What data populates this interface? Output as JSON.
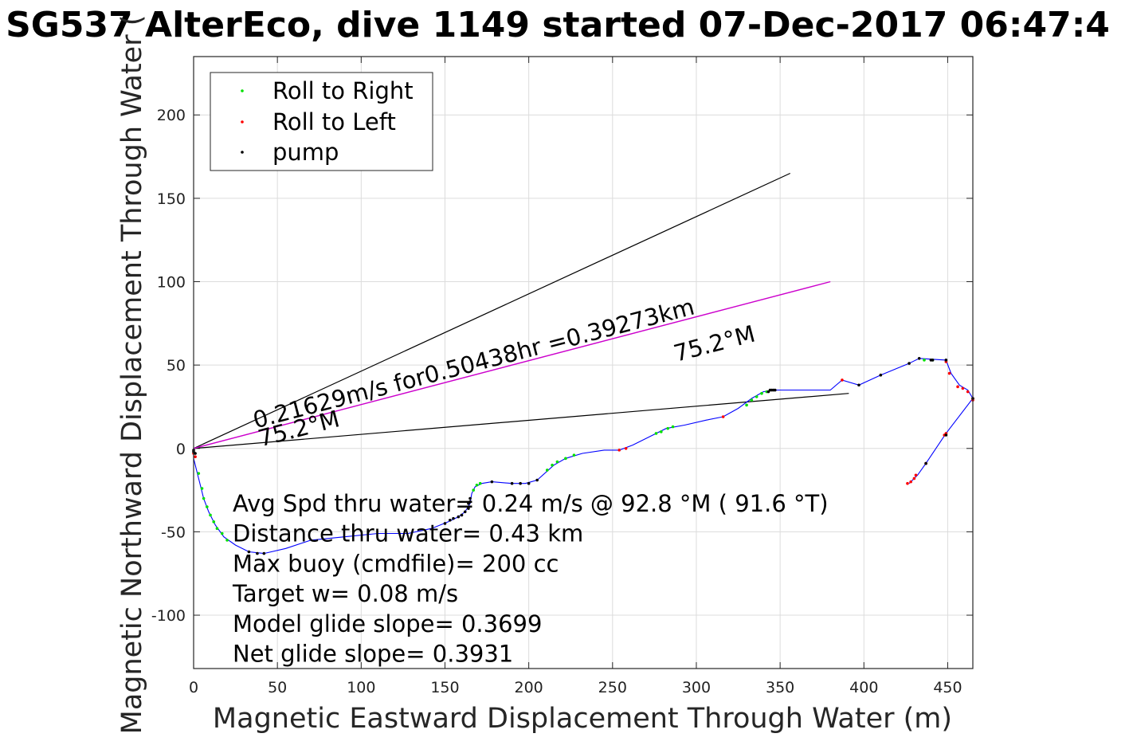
{
  "title": "SG537 AlterEco, dive 1149 started 07-Dec-2017 06:47:4",
  "chart_data": {
    "type": "line",
    "xlabel": "Magnetic Eastward Displacement Through Water (m)",
    "ylabel": "Magnetic Northward Displacement Through Water (",
    "xlim": [
      0,
      465
    ],
    "ylim": [
      -132,
      235
    ],
    "xticks": [
      0,
      50,
      100,
      150,
      200,
      250,
      300,
      350,
      400,
      450
    ],
    "yticks": [
      200,
      150,
      100,
      50,
      0,
      -50,
      -100
    ],
    "xtick_labels": [
      "0",
      "50",
      "100",
      "150",
      "200",
      "250",
      "300",
      "350",
      "400",
      "450"
    ],
    "ytick_labels": [
      "200",
      "150",
      "100",
      "50",
      "0",
      "-50",
      "-100"
    ],
    "grid": true,
    "legend_position": "top-left",
    "legend": [
      "Roll to Right",
      "Roll to Left",
      "pump"
    ],
    "colors": {
      "track": "#0000ff",
      "roll_right": "#00e000",
      "roll_left": "#ff0000",
      "pump": "#000000",
      "mean_line": "#cc00cc",
      "heading_line": "#000000"
    },
    "track": [
      [
        0,
        0
      ],
      [
        0,
        -6
      ],
      [
        2,
        -14
      ],
      [
        4,
        -22
      ],
      [
        6,
        -30
      ],
      [
        9,
        -38
      ],
      [
        13,
        -46
      ],
      [
        18,
        -53
      ],
      [
        25,
        -58
      ],
      [
        33,
        -62
      ],
      [
        42,
        -63
      ],
      [
        55,
        -60
      ],
      [
        70,
        -55
      ],
      [
        90,
        -53
      ],
      [
        110,
        -51
      ],
      [
        128,
        -51
      ],
      [
        142,
        -48
      ],
      [
        152,
        -44
      ],
      [
        158,
        -41
      ],
      [
        162,
        -38
      ],
      [
        165,
        -33
      ],
      [
        166,
        -27
      ],
      [
        168,
        -23
      ],
      [
        172,
        -21
      ],
      [
        178,
        -20
      ],
      [
        190,
        -21
      ],
      [
        198,
        -21
      ],
      [
        205,
        -19
      ],
      [
        215,
        -10
      ],
      [
        222,
        -6
      ],
      [
        232,
        -3
      ],
      [
        245,
        -1
      ],
      [
        254,
        -1
      ],
      [
        262,
        2
      ],
      [
        272,
        7
      ],
      [
        282,
        12
      ],
      [
        293,
        14
      ],
      [
        306,
        17
      ],
      [
        316,
        19
      ],
      [
        325,
        24
      ],
      [
        333,
        30
      ],
      [
        340,
        34
      ],
      [
        346,
        35
      ],
      [
        380,
        35
      ],
      [
        387,
        41
      ],
      [
        397,
        38
      ],
      [
        410,
        44
      ],
      [
        427,
        51
      ],
      [
        433,
        54
      ],
      [
        449,
        53
      ],
      [
        452,
        45
      ],
      [
        457,
        38
      ],
      [
        462,
        35
      ],
      [
        465,
        30
      ],
      [
        449,
        9
      ],
      [
        437,
        -9
      ],
      [
        432,
        -16
      ],
      [
        427,
        -21
      ]
    ],
    "roll_right_points": [
      [
        3,
        -15
      ],
      [
        5,
        -24
      ],
      [
        6,
        -30
      ],
      [
        8,
        -35
      ],
      [
        10,
        -40
      ],
      [
        12,
        -44
      ],
      [
        14,
        -48
      ],
      [
        17,
        -51
      ],
      [
        20,
        -55
      ],
      [
        167,
        -25
      ],
      [
        169,
        -22
      ],
      [
        171,
        -21
      ],
      [
        211,
        -13
      ],
      [
        214,
        -10
      ],
      [
        217,
        -8
      ],
      [
        222,
        -6
      ],
      [
        227,
        -4
      ],
      [
        276,
        9
      ],
      [
        279,
        10
      ],
      [
        283,
        12
      ],
      [
        286,
        13
      ],
      [
        330,
        26
      ],
      [
        333,
        29
      ],
      [
        336,
        31
      ],
      [
        339,
        33
      ],
      [
        342,
        34
      ],
      [
        436,
        53
      ],
      [
        441,
        53
      ]
    ],
    "roll_left_points": [
      [
        0,
        -3
      ],
      [
        1,
        -5
      ],
      [
        254,
        -1
      ],
      [
        258,
        0
      ],
      [
        316,
        19
      ],
      [
        387,
        41
      ],
      [
        449,
        52
      ],
      [
        451,
        45
      ],
      [
        456,
        37
      ],
      [
        459,
        36
      ],
      [
        462,
        34
      ],
      [
        465,
        30
      ],
      [
        465,
        29
      ],
      [
        449,
        9
      ],
      [
        448,
        8
      ],
      [
        437,
        -9
      ],
      [
        431,
        -16
      ],
      [
        430,
        -18
      ],
      [
        428,
        -20
      ],
      [
        426,
        -21
      ]
    ],
    "pump_points": [
      [
        0,
        -1
      ],
      [
        0,
        -2
      ],
      [
        1,
        -3
      ],
      [
        33,
        -62
      ],
      [
        38,
        -63
      ],
      [
        42,
        -63
      ],
      [
        150,
        -45
      ],
      [
        153,
        -43
      ],
      [
        155,
        -42
      ],
      [
        158,
        -41
      ],
      [
        160,
        -40
      ],
      [
        162,
        -38
      ],
      [
        164,
        -36
      ],
      [
        164,
        -33
      ],
      [
        165,
        -32
      ],
      [
        165,
        -30
      ],
      [
        178,
        -20
      ],
      [
        190,
        -21
      ],
      [
        195,
        -21
      ],
      [
        200,
        -21
      ],
      [
        205,
        -19
      ],
      [
        343,
        34
      ],
      [
        344,
        35
      ],
      [
        345,
        35
      ],
      [
        346,
        35
      ],
      [
        347,
        35
      ],
      [
        397,
        38
      ],
      [
        410,
        44
      ],
      [
        427,
        51
      ],
      [
        433,
        54
      ],
      [
        440,
        53
      ],
      [
        441,
        53
      ],
      [
        449,
        53
      ],
      [
        465,
        30
      ],
      [
        449,
        8
      ],
      [
        437,
        -9
      ]
    ],
    "mean_line": [
      [
        0,
        0
      ],
      [
        380,
        100
      ]
    ],
    "heading_lines": [
      [
        [
          0,
          0
        ],
        [
          356,
          165
        ]
      ],
      [
        [
          0,
          0
        ],
        [
          391,
          33
        ]
      ]
    ],
    "annotations": [
      {
        "text": "0.21629m/s for0.50438hr =0.39273km",
        "x": 37,
        "y": 12,
        "angle_deg": 14.6,
        "size": 29
      },
      {
        "text": "75.2°M",
        "x": 288,
        "y": 52,
        "angle_deg": 14.6,
        "size": 29
      },
      {
        "text": "75.2°M",
        "x": 40,
        "y": 1,
        "angle_deg": 14.6,
        "size": 29
      }
    ],
    "stats": [
      "Avg Spd thru water=  0.24 m/s @  92.8 °M ( 91.6 °T)",
      "Distance thru water=  0.43 km",
      "Max buoy (cmdfile)= 200 cc",
      "Target w= 0.08 m/s",
      "Model glide slope= 0.3699",
      "Net glide slope= 0.3931"
    ]
  }
}
